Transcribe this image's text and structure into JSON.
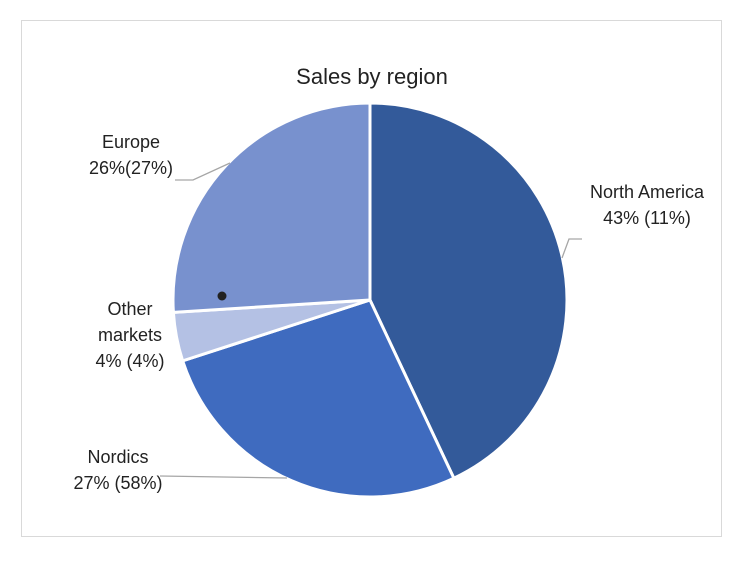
{
  "chart_data": {
    "type": "pie",
    "title": "Sales by region",
    "categories": [
      "North America",
      "Nordics",
      "Other markets",
      "Europe"
    ],
    "values": [
      43,
      27,
      4,
      26
    ],
    "value_labels": [
      "43% (11%)",
      "27% (58%)",
      "4% (4%)",
      "26%(27%)"
    ],
    "colors": [
      "#335a9a",
      "#3f6bbf",
      "#b4c1e4",
      "#7891ce"
    ]
  }
}
